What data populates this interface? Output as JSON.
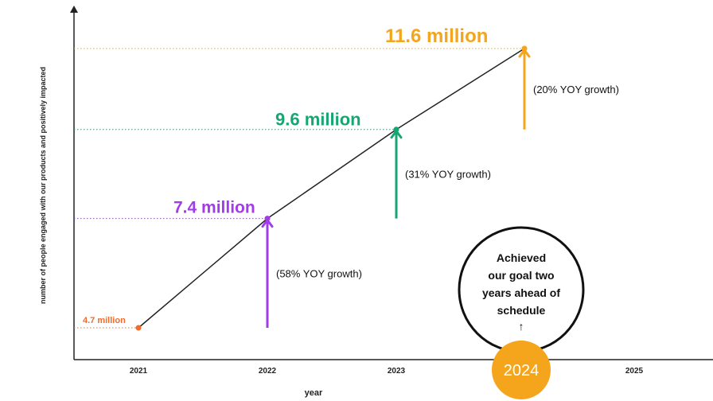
{
  "chart_data": {
    "type": "line",
    "xlabel": "year",
    "ylabel": "number of people engaged with our products and positively impacted",
    "categories": [
      "2021",
      "2022",
      "2023",
      "2024",
      "2025"
    ],
    "points": [
      {
        "year": "2021",
        "value": 4.7,
        "label": "4.7 million",
        "color": "#f26b2a"
      },
      {
        "year": "2022",
        "value": 7.4,
        "label": "7.4 million",
        "color": "#a23be8",
        "growth": "(58% YOY growth)"
      },
      {
        "year": "2023",
        "value": 9.6,
        "label": "9.6 million",
        "color": "#17a673",
        "growth": "(31% YOY growth)"
      },
      {
        "year": "2024",
        "value": 11.6,
        "label": "11.6 million",
        "color": "#f4a51c",
        "growth": "(20% YOY growth)"
      }
    ],
    "grid": false,
    "callout": {
      "lines": [
        "Achieved",
        "our goal two",
        "years ahead of",
        "schedule"
      ],
      "arrow": "↑",
      "badge": "2024",
      "badge_color": "#f4a51c"
    },
    "colors": {
      "line": "#222222",
      "axis": "#222222",
      "faded_tick": "#888888"
    }
  }
}
